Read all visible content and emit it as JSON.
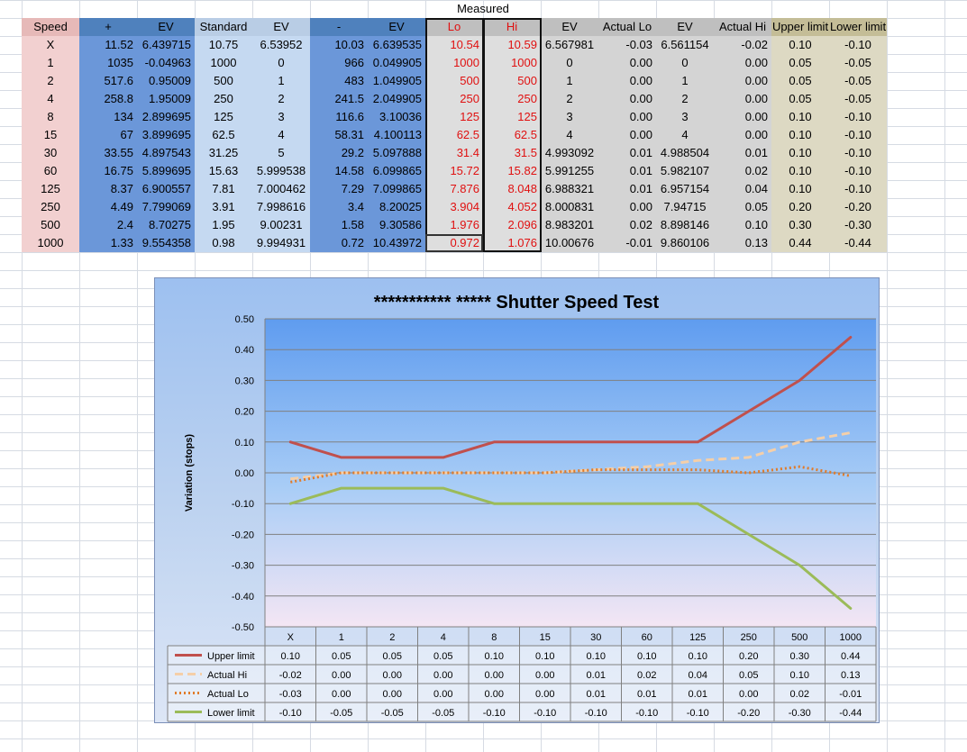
{
  "table": {
    "group_label": "Measured",
    "headers": [
      "Speed",
      "+",
      "EV",
      "Standard",
      "EV",
      "-",
      "EV",
      "Lo",
      "Hi",
      "EV",
      "Actual Lo",
      "EV",
      "Actual Hi",
      "Upper limit",
      "Lower limit"
    ],
    "rows": [
      [
        "X",
        "11.52",
        "6.439715",
        "10.75",
        "6.53952",
        "10.03",
        "6.639535",
        "10.54",
        "10.59",
        "6.567981",
        "-0.03",
        "6.561154",
        "-0.02",
        "0.10",
        "-0.10"
      ],
      [
        "1",
        "1035",
        "-0.04963",
        "1000",
        "0",
        "966",
        "0.049905",
        "1000",
        "1000",
        "0",
        "0.00",
        "0",
        "0.00",
        "0.05",
        "-0.05"
      ],
      [
        "2",
        "517.6",
        "0.95009",
        "500",
        "1",
        "483",
        "1.049905",
        "500",
        "500",
        "1",
        "0.00",
        "1",
        "0.00",
        "0.05",
        "-0.05"
      ],
      [
        "4",
        "258.8",
        "1.95009",
        "250",
        "2",
        "241.5",
        "2.049905",
        "250",
        "250",
        "2",
        "0.00",
        "2",
        "0.00",
        "0.05",
        "-0.05"
      ],
      [
        "8",
        "134",
        "2.899695",
        "125",
        "3",
        "116.6",
        "3.10036",
        "125",
        "125",
        "3",
        "0.00",
        "3",
        "0.00",
        "0.10",
        "-0.10"
      ],
      [
        "15",
        "67",
        "3.899695",
        "62.5",
        "4",
        "58.31",
        "4.100113",
        "62.5",
        "62.5",
        "4",
        "0.00",
        "4",
        "0.00",
        "0.10",
        "-0.10"
      ],
      [
        "30",
        "33.55",
        "4.897543",
        "31.25",
        "5",
        "29.2",
        "5.097888",
        "31.4",
        "31.5",
        "4.993092",
        "0.01",
        "4.988504",
        "0.01",
        "0.10",
        "-0.10"
      ],
      [
        "60",
        "16.75",
        "5.899695",
        "15.63",
        "5.999538",
        "14.58",
        "6.099865",
        "15.72",
        "15.82",
        "5.991255",
        "0.01",
        "5.982107",
        "0.02",
        "0.10",
        "-0.10"
      ],
      [
        "125",
        "8.37",
        "6.900557",
        "7.81",
        "7.000462",
        "7.29",
        "7.099865",
        "7.876",
        "8.048",
        "6.988321",
        "0.01",
        "6.957154",
        "0.04",
        "0.10",
        "-0.10"
      ],
      [
        "250",
        "4.49",
        "7.799069",
        "3.91",
        "7.998616",
        "3.4",
        "8.20025",
        "3.904",
        "4.052",
        "8.000831",
        "0.00",
        "7.94715",
        "0.05",
        "0.20",
        "-0.20"
      ],
      [
        "500",
        "2.4",
        "8.70275",
        "1.95",
        "9.00231",
        "1.58",
        "9.30586",
        "1.976",
        "2.096",
        "8.983201",
        "0.02",
        "8.898146",
        "0.10",
        "0.30",
        "-0.30"
      ],
      [
        "1000",
        "1.33",
        "9.554358",
        "0.98",
        "9.994931",
        "0.72",
        "10.43972",
        "0.972",
        "1.076",
        "10.00676",
        "-0.01",
        "9.860106",
        "0.13",
        "0.44",
        "-0.44"
      ]
    ]
  },
  "colors": {
    "speed_fill": "#f2d0d0",
    "plus_fill": "#6b97d9",
    "standard_fill": "#c5d9f1",
    "minus_fill": "#6b97d9",
    "measured_fill": "#dedede",
    "actual_fill": "#d4d4d4",
    "limit_fill": "#ddd9c3",
    "header_fill_dark": "#4f81bd",
    "header_fill_light": "#b9cde5",
    "header_fill_gray": "#bfbfbf",
    "header_fill_tan": "#c4bd97",
    "header_fill_pink": "#e6b9b8",
    "measured_text": "#e01010"
  },
  "chart_data": {
    "type": "line",
    "title": "*********** ***** Shutter Speed Test",
    "ylabel": "Variation (stops)",
    "xlabel": "",
    "ylim": [
      -0.5,
      0.5
    ],
    "yticks": [
      "0.50",
      "0.40",
      "0.30",
      "0.20",
      "0.10",
      "0.00",
      "-0.10",
      "-0.20",
      "-0.30",
      "-0.40",
      "-0.50"
    ],
    "grid": true,
    "legend": "data-table",
    "categories": [
      "X",
      "1",
      "2",
      "4",
      "8",
      "15",
      "30",
      "60",
      "125",
      "250",
      "500",
      "1000"
    ],
    "series": [
      {
        "name": "Upper limit",
        "color": "#c0504d",
        "dash": "",
        "values": [
          0.1,
          0.05,
          0.05,
          0.05,
          0.1,
          0.1,
          0.1,
          0.1,
          0.1,
          0.2,
          0.3,
          0.44
        ],
        "labels": [
          "0.10",
          "0.05",
          "0.05",
          "0.05",
          "0.10",
          "0.10",
          "0.10",
          "0.10",
          "0.10",
          "0.20",
          "0.30",
          "0.44"
        ]
      },
      {
        "name": "Actual Hi",
        "color": "#f5cfa8",
        "dash": "9,5",
        "values": [
          -0.02,
          0.0,
          0.0,
          0.0,
          0.0,
          0.0,
          0.01,
          0.02,
          0.04,
          0.05,
          0.1,
          0.13
        ],
        "labels": [
          "-0.02",
          "0.00",
          "0.00",
          "0.00",
          "0.00",
          "0.00",
          "0.01",
          "0.02",
          "0.04",
          "0.05",
          "0.10",
          "0.13"
        ]
      },
      {
        "name": "Actual Lo",
        "color": "#e07b2a",
        "dash": "2,3",
        "values": [
          -0.03,
          0.0,
          0.0,
          0.0,
          0.0,
          0.0,
          0.01,
          0.01,
          0.01,
          0.0,
          0.02,
          -0.01
        ],
        "labels": [
          "-0.03",
          "0.00",
          "0.00",
          "0.00",
          "0.00",
          "0.00",
          "0.01",
          "0.01",
          "0.01",
          "0.00",
          "0.02",
          "-0.01"
        ]
      },
      {
        "name": "Lower limit",
        "color": "#9bbb59",
        "dash": "",
        "values": [
          -0.1,
          -0.05,
          -0.05,
          -0.05,
          -0.1,
          -0.1,
          -0.1,
          -0.1,
          -0.1,
          -0.2,
          -0.3,
          -0.44
        ],
        "labels": [
          "-0.10",
          "-0.05",
          "-0.05",
          "-0.05",
          "-0.10",
          "-0.10",
          "-0.10",
          "-0.10",
          "-0.10",
          "-0.20",
          "-0.30",
          "-0.44"
        ]
      }
    ]
  }
}
